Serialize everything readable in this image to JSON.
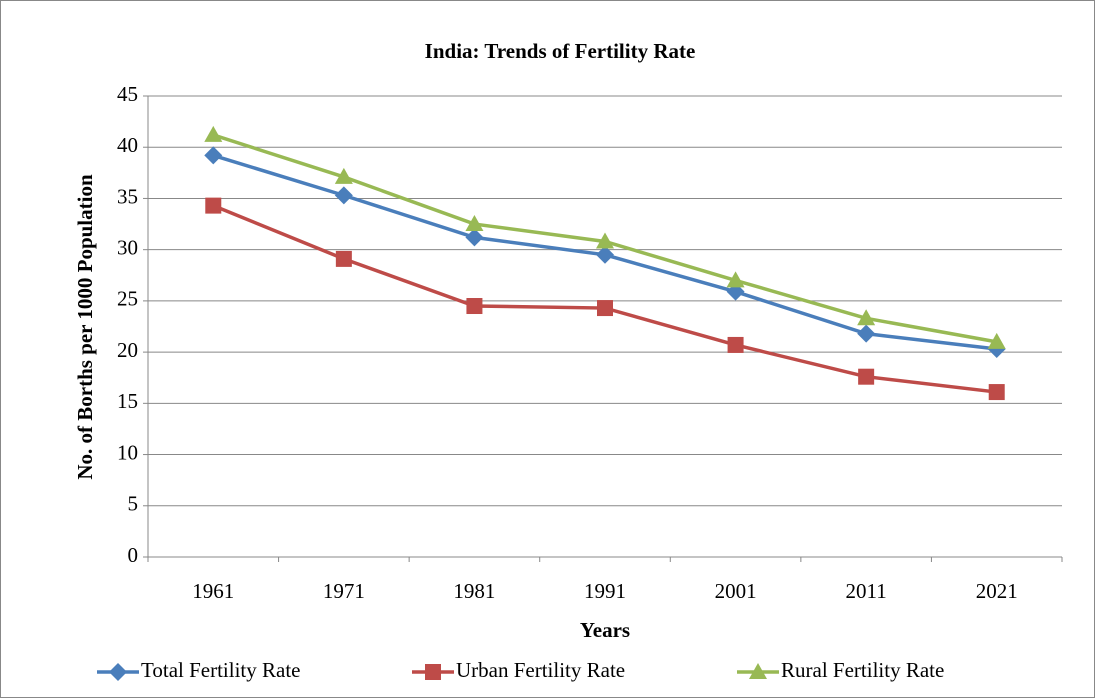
{
  "chart_data": {
    "type": "line",
    "title": "India: Trends of Fertility Rate",
    "x_label": "Years",
    "y_label": "No. of Borths per 1000 Population",
    "categories": [
      "1961",
      "1971",
      "1981",
      "1991",
      "2001",
      "2011",
      "2021"
    ],
    "series": [
      {
        "name": "Total Fertility Rate",
        "color": "#4a7ebb",
        "marker": "diamond",
        "values": [
          39.2,
          35.3,
          31.2,
          29.5,
          25.9,
          21.8,
          20.3
        ]
      },
      {
        "name": "Urban Fertility Rate",
        "color": "#be4b48",
        "marker": "square",
        "values": [
          34.3,
          29.1,
          24.5,
          24.3,
          20.7,
          17.6,
          16.1
        ]
      },
      {
        "name": "Rural Fertility Rate",
        "color": "#98b954",
        "marker": "triangle",
        "values": [
          41.2,
          37.1,
          32.5,
          30.8,
          27.0,
          23.3,
          21.0
        ]
      }
    ],
    "ylim": [
      0,
      45
    ],
    "yticks": [
      0,
      5,
      10,
      15,
      20,
      25,
      30,
      35,
      40,
      45
    ],
    "grid": true,
    "legend": "bottom"
  }
}
